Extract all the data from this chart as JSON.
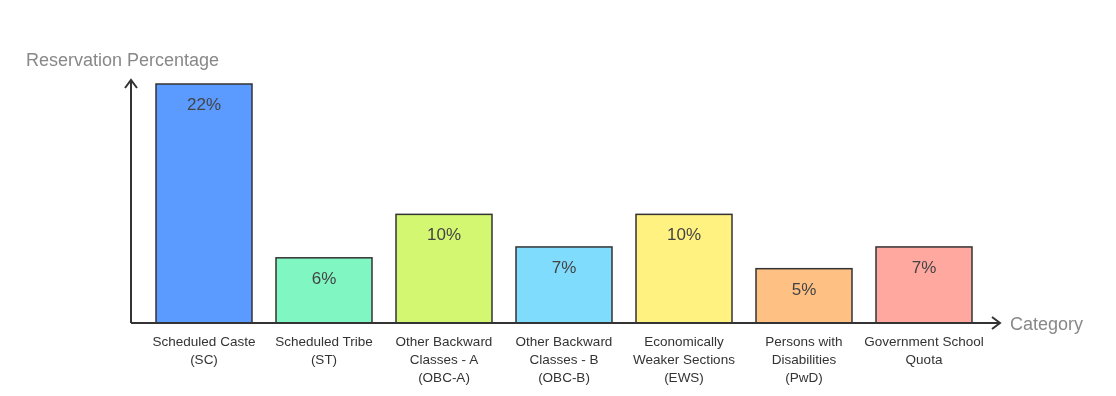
{
  "chart_data": {
    "type": "bar",
    "xlabel": "Category",
    "ylabel": "Reservation Percentage",
    "categories": [
      "Scheduled Caste (SC)",
      "Scheduled Tribe (ST)",
      "Other Backward Classes - A (OBC-A)",
      "Other Backward Classes - B (OBC-B)",
      "Economically Weaker Sections (EWS)",
      "Persons with Disabilities (PwD)",
      "Government School Quota"
    ],
    "values": [
      22,
      6,
      10,
      7,
      10,
      5,
      7
    ],
    "colors": [
      "#5b9bff",
      "#80f7c2",
      "#d4f772",
      "#80dcfc",
      "#fff280",
      "#ffc084",
      "#ffa8a0"
    ],
    "value_labels": [
      "22%",
      "6%",
      "10%",
      "7%",
      "10%",
      "5%",
      "7%"
    ]
  }
}
